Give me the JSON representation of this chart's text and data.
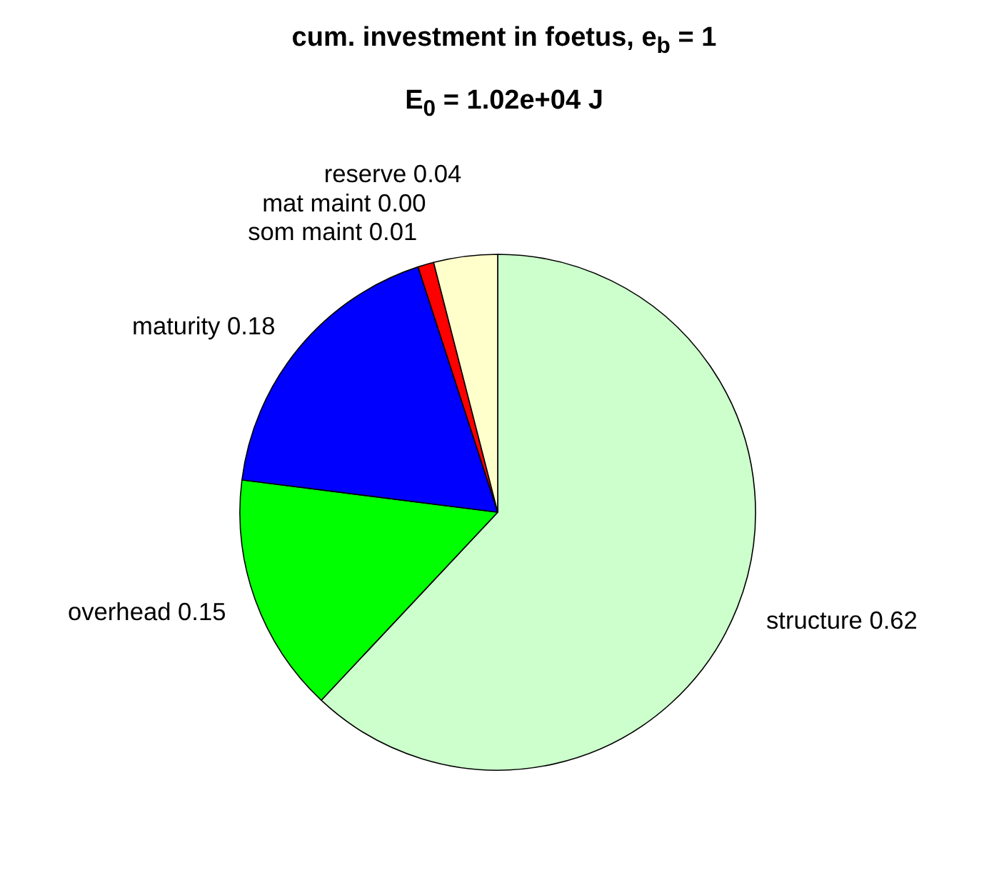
{
  "chart_data": {
    "type": "pie",
    "title": "cum. investment in foetus, e$_{b}$ = 1",
    "subtitle": "E$_{0}$ = 1.02e+04 J",
    "categories": [
      "structure",
      "overhead",
      "maturity",
      "som maint",
      "mat maint",
      "reserve"
    ],
    "values": [
      0.62,
      0.15,
      0.18,
      0.01,
      0.0,
      0.04
    ],
    "value_labels": [
      "0.62",
      "0.15",
      "0.18",
      "0.01",
      "0.00",
      "0.04"
    ],
    "colors": [
      "#ccffcc",
      "#00ff00",
      "#0000ff",
      "#ff0000",
      null,
      "#ffffcc"
    ]
  }
}
